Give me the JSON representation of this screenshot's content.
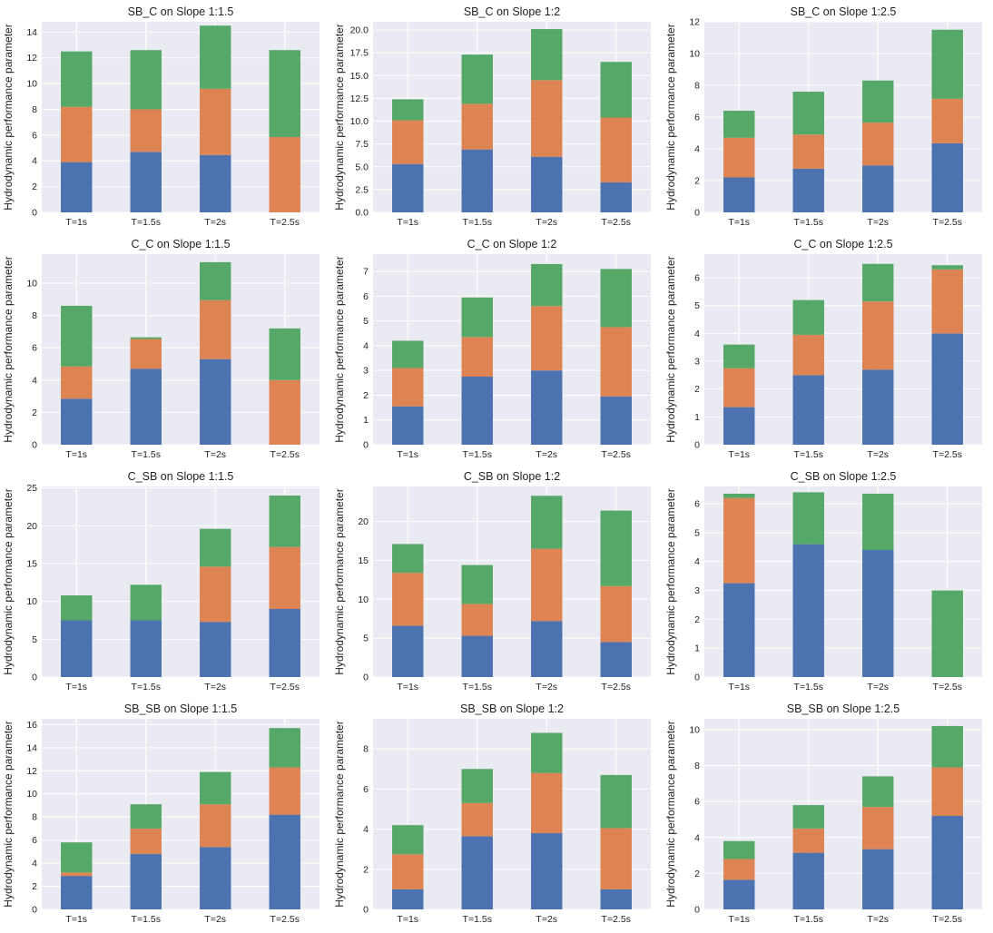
{
  "colors": {
    "bottom": "#4c72b0",
    "middle": "#dd8452",
    "top": "#55a868",
    "plot_bg": "#eaeaf2",
    "grid": "#ffffff"
  },
  "chart_data": [
    {
      "type": "bar",
      "stacked": true,
      "title": "SB_C on Slope 1:1.5",
      "ylabel": "Hydrodynamic performance parameter",
      "categories": [
        "T=1s",
        "T=1.5s",
        "T=2s",
        "T=2.5s"
      ],
      "ylim": [
        0,
        14.8
      ],
      "yticks": [
        0,
        2,
        4,
        6,
        8,
        10,
        12,
        14
      ],
      "series": [
        {
          "values": [
            3.9,
            4.7,
            4.45,
            0
          ]
        },
        {
          "values": [
            4.3,
            3.3,
            5.15,
            5.85
          ]
        },
        {
          "values": [
            4.3,
            4.6,
            4.9,
            6.75
          ]
        }
      ]
    },
    {
      "type": "bar",
      "stacked": true,
      "title": "SB_C on Slope 1:2",
      "ylabel": "Hydrodynamic performance parameter",
      "categories": [
        "T=1s",
        "T=1.5s",
        "T=2s",
        "T=2.5s"
      ],
      "ylim": [
        0,
        20.9
      ],
      "yticks": [
        0,
        2.5,
        5,
        7.5,
        10,
        12.5,
        15,
        17.5,
        20
      ],
      "tick_decimals": 1,
      "series": [
        {
          "values": [
            5.3,
            6.9,
            6.1,
            3.3
          ]
        },
        {
          "values": [
            4.8,
            5.0,
            8.4,
            7.1
          ]
        },
        {
          "values": [
            2.3,
            5.4,
            5.6,
            6.1
          ]
        }
      ]
    },
    {
      "type": "bar",
      "stacked": true,
      "title": "SB_C on Slope 1:2.5",
      "ylabel": "Hydrodynamic performance parameter",
      "categories": [
        "T=1s",
        "T=1.5s",
        "T=2s",
        "T=2.5s"
      ],
      "ylim": [
        0,
        12
      ],
      "yticks": [
        0,
        2,
        4,
        6,
        8,
        10,
        12
      ],
      "series": [
        {
          "values": [
            2.2,
            2.75,
            2.95,
            4.35
          ]
        },
        {
          "values": [
            2.5,
            2.15,
            2.7,
            2.8
          ]
        },
        {
          "values": [
            1.7,
            2.7,
            2.65,
            4.35
          ]
        }
      ]
    },
    {
      "type": "bar",
      "stacked": true,
      "title": "C_C on Slope 1:1.5",
      "ylabel": "Hydrodynamic performance parameter",
      "categories": [
        "T=1s",
        "T=1.5s",
        "T=2s",
        "T=2.5s"
      ],
      "ylim": [
        0,
        11.8
      ],
      "yticks": [
        0,
        2,
        4,
        6,
        8,
        10
      ],
      "series": [
        {
          "values": [
            2.85,
            4.7,
            5.3,
            0
          ]
        },
        {
          "values": [
            2.0,
            1.85,
            3.65,
            4.0
          ]
        },
        {
          "values": [
            3.75,
            0.1,
            2.35,
            3.2
          ]
        }
      ]
    },
    {
      "type": "bar",
      "stacked": true,
      "title": "C_C on Slope 1:2",
      "ylabel": "Hydrodynamic performance parameter",
      "categories": [
        "T=1s",
        "T=1.5s",
        "T=2s",
        "T=2.5s"
      ],
      "ylim": [
        0,
        7.7
      ],
      "yticks": [
        0,
        1,
        2,
        3,
        4,
        5,
        6,
        7
      ],
      "series": [
        {
          "values": [
            1.55,
            2.75,
            3.0,
            1.95
          ]
        },
        {
          "values": [
            1.55,
            1.6,
            2.6,
            2.8
          ]
        },
        {
          "values": [
            1.1,
            1.6,
            1.7,
            2.35
          ]
        }
      ]
    },
    {
      "type": "bar",
      "stacked": true,
      "title": "C_C on Slope 1:2.5",
      "ylabel": "Hydrodynamic performance parameter",
      "categories": [
        "T=1s",
        "T=1.5s",
        "T=2s",
        "T=2.5s"
      ],
      "ylim": [
        0,
        6.85
      ],
      "yticks": [
        0,
        1,
        2,
        3,
        4,
        5,
        6
      ],
      "series": [
        {
          "values": [
            1.35,
            2.5,
            2.7,
            4.0
          ]
        },
        {
          "values": [
            1.4,
            1.45,
            2.45,
            2.3
          ]
        },
        {
          "values": [
            0.85,
            1.25,
            1.35,
            0.15
          ]
        }
      ]
    },
    {
      "type": "bar",
      "stacked": true,
      "title": "C_SB on Slope 1:1.5",
      "ylabel": "Hydrodynamic performance parameter",
      "categories": [
        "T=1s",
        "T=1.5s",
        "T=2s",
        "T=2.5s"
      ],
      "ylim": [
        0,
        25.2
      ],
      "yticks": [
        0,
        5,
        10,
        15,
        20,
        25
      ],
      "series": [
        {
          "values": [
            7.5,
            7.5,
            7.3,
            9.0
          ]
        },
        {
          "values": [
            0,
            0,
            7.3,
            8.2
          ]
        },
        {
          "values": [
            3.3,
            4.7,
            5.0,
            6.8
          ]
        }
      ]
    },
    {
      "type": "bar",
      "stacked": true,
      "title": "C_SB on Slope 1:2",
      "ylabel": "Hydrodynamic performance parameter",
      "categories": [
        "T=1s",
        "T=1.5s",
        "T=2s",
        "T=2.5s"
      ],
      "ylim": [
        0,
        24.5
      ],
      "yticks": [
        0,
        5,
        10,
        15,
        20
      ],
      "series": [
        {
          "values": [
            6.6,
            5.3,
            7.2,
            4.5
          ]
        },
        {
          "values": [
            6.8,
            4.1,
            9.3,
            7.2
          ]
        },
        {
          "values": [
            3.7,
            5.0,
            6.8,
            9.7
          ]
        }
      ]
    },
    {
      "type": "bar",
      "stacked": true,
      "title": "C_SB on Slope 1:2.5",
      "ylabel": "Hydrodynamic performance parameter",
      "categories": [
        "T=1s",
        "T=1.5s",
        "T=2s",
        "T=2.5s"
      ],
      "ylim": [
        0,
        6.6
      ],
      "yticks": [
        0,
        1,
        2,
        3,
        4,
        5,
        6
      ],
      "series": [
        {
          "values": [
            3.25,
            4.6,
            4.4,
            0
          ]
        },
        {
          "values": [
            2.95,
            0,
            0,
            0
          ]
        },
        {
          "values": [
            0.15,
            1.8,
            1.95,
            3.0
          ]
        }
      ]
    },
    {
      "type": "bar",
      "stacked": true,
      "title": "SB_SB on Slope 1:1.5",
      "ylabel": "Hydrodynamic performance parameter",
      "categories": [
        "T=1s",
        "T=1.5s",
        "T=2s",
        "T=2.5s"
      ],
      "ylim": [
        0,
        16.5
      ],
      "yticks": [
        0,
        2,
        4,
        6,
        8,
        10,
        12,
        14,
        16
      ],
      "series": [
        {
          "values": [
            2.9,
            4.8,
            5.4,
            8.2
          ]
        },
        {
          "values": [
            0.3,
            2.2,
            3.7,
            4.1
          ]
        },
        {
          "values": [
            2.6,
            2.1,
            2.8,
            3.4
          ]
        }
      ]
    },
    {
      "type": "bar",
      "stacked": true,
      "title": "SB_SB on Slope 1:2",
      "ylabel": "Hydrodynamic performance parameter",
      "categories": [
        "T=1s",
        "T=1.5s",
        "T=2s",
        "T=2.5s"
      ],
      "ylim": [
        0,
        9.5
      ],
      "yticks": [
        0,
        2,
        4,
        6,
        8
      ],
      "series": [
        {
          "values": [
            1.0,
            3.65,
            3.8,
            1.0
          ]
        },
        {
          "values": [
            1.75,
            1.65,
            3.0,
            3.05
          ]
        },
        {
          "values": [
            1.45,
            1.7,
            2.0,
            2.65
          ]
        }
      ]
    },
    {
      "type": "bar",
      "stacked": true,
      "title": "SB_SB on Slope 1:2.5",
      "ylabel": "Hydrodynamic performance parameter",
      "categories": [
        "T=1s",
        "T=1.5s",
        "T=2s",
        "T=2.5s"
      ],
      "ylim": [
        0,
        10.6
      ],
      "yticks": [
        0,
        2,
        4,
        6,
        8,
        10
      ],
      "series": [
        {
          "values": [
            1.65,
            3.15,
            3.35,
            5.2
          ]
        },
        {
          "values": [
            1.15,
            1.35,
            2.35,
            2.7
          ]
        },
        {
          "values": [
            1.0,
            1.3,
            1.7,
            2.3
          ]
        }
      ]
    }
  ]
}
